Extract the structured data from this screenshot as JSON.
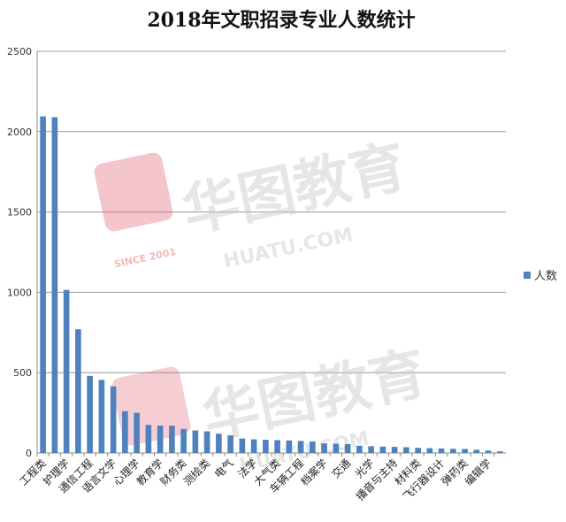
{
  "chart_data": {
    "type": "bar",
    "title": "2018年文职招录专业人数统计",
    "xlabel": "",
    "ylabel": "",
    "ylim": [
      0,
      2500
    ],
    "yticks": [
      0,
      500,
      1000,
      1500,
      2000,
      2500
    ],
    "grid": true,
    "legend_position": "right",
    "series_color": "#4f81bd",
    "categories": [
      "工程类",
      "",
      "护理学",
      "",
      "通信工程",
      "",
      "语言文学",
      "",
      "心理学",
      "",
      "教育学",
      "",
      "财务类",
      "",
      "测绘类",
      "",
      "电气",
      "",
      "法学",
      "",
      "大气类",
      "",
      "车辆工程",
      "",
      "档案学",
      "",
      "交通",
      "",
      "光学",
      "",
      "播音与主持",
      "",
      "材料类",
      "",
      "飞行器设计",
      "",
      "弹药类",
      "",
      "编辑学",
      ""
    ],
    "series": [
      {
        "name": "人数",
        "values": [
          2095,
          2090,
          1015,
          770,
          480,
          455,
          415,
          260,
          250,
          175,
          170,
          170,
          150,
          140,
          135,
          120,
          110,
          90,
          85,
          82,
          80,
          78,
          75,
          72,
          60,
          58,
          55,
          45,
          42,
          40,
          38,
          36,
          32,
          30,
          28,
          26,
          25,
          20,
          15,
          10
        ]
      }
    ]
  },
  "watermark": {
    "brand_cn": "华图教育",
    "brand_en": "HUATU.COM",
    "since": "SINCE 2001"
  }
}
